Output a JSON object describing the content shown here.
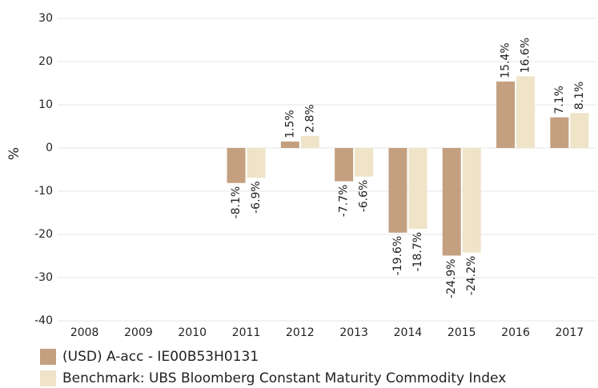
{
  "chart_data": {
    "type": "bar",
    "y_label": "%",
    "categories": [
      "2008",
      "2009",
      "2010",
      "2011",
      "2012",
      "2013",
      "2014",
      "2015",
      "2016",
      "2017"
    ],
    "series": [
      {
        "name": "(USD) A-acc - IE00B53H0131",
        "color": "#c4a080",
        "values": [
          null,
          null,
          null,
          -8.1,
          1.5,
          -7.7,
          -19.6,
          -24.9,
          15.4,
          7.1
        ],
        "value_labels": [
          null,
          null,
          null,
          "-8.1%",
          "1.5%",
          "-7.7%",
          "-19.6%",
          "-24.9%",
          "15.4%",
          "7.1%"
        ]
      },
      {
        "name": "Benchmark: UBS Bloomberg Constant Maturity Commodity Index",
        "color": "#efe3c8",
        "values": [
          null,
          null,
          null,
          -6.9,
          2.8,
          -6.6,
          -18.7,
          -24.2,
          16.6,
          8.1
        ],
        "value_labels": [
          null,
          null,
          null,
          "-6.9%",
          "2.8%",
          "-6.6%",
          "-18.7%",
          "-24.2%",
          "16.6%",
          "8.1%"
        ]
      }
    ],
    "ylim": [
      -40,
      30
    ],
    "yticks": [
      -40,
      -30,
      -20,
      -10,
      0,
      10,
      20,
      30
    ],
    "grid": true
  }
}
